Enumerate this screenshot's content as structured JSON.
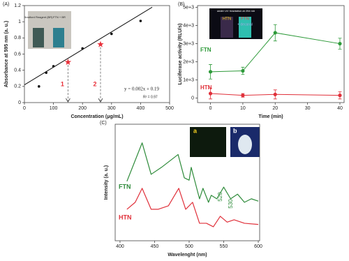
{
  "chart_data": [
    {
      "type": "scatter",
      "panel_label": "(A)",
      "xlabel": "Concentration (μg/mL)",
      "ylabel": "Absorbance at 595 nm (a. u.)",
      "xlim": [
        0,
        500
      ],
      "ylim": [
        0,
        1.2
      ],
      "xticks": [
        0,
        100,
        200,
        300,
        400,
        500
      ],
      "yticks": [
        0,
        0.2,
        0.4,
        0.6,
        0.8,
        1,
        1.2
      ],
      "x": [
        50,
        75,
        100,
        200,
        300,
        400
      ],
      "values": [
        0.2,
        0.37,
        0.45,
        0.67,
        0.85,
        1.01
      ],
      "color": "#111111",
      "fit": {
        "x": [
          0,
          440
        ],
        "y": [
          0.22,
          1.18
        ],
        "equation": "y = 0.002x + 0.19",
        "r2": "R² = 0.97"
      },
      "markers": {
        "x": [
          150,
          262
        ],
        "y": [
          0.5,
          0.72
        ],
        "labels": [
          "1",
          "2"
        ],
        "color": "#e8303a"
      },
      "inset_texts": [
        "Bradford Reagent (BR)",
        "FTN + BR"
      ]
    },
    {
      "type": "line",
      "panel_label": "(B)",
      "xlabel": "Time (min)",
      "ylabel": "Luciferase activity (RLU/s)",
      "xlim": [
        -4,
        41.3
      ],
      "ylim": [
        -250,
        5100
      ],
      "xticks": [
        0,
        10,
        20,
        30,
        40
      ],
      "yticks": [
        0,
        {
          "value": 1000,
          "label": "1e+3"
        },
        {
          "value": 2000,
          "label": "2e+3"
        },
        {
          "value": 3000,
          "label": "3e+3"
        },
        {
          "value": 4000,
          "label": "4e+3"
        },
        {
          "value": 5000,
          "label": "5e+3"
        }
      ],
      "x": [
        0,
        10,
        20,
        40
      ],
      "series": [
        {
          "name": "FTN",
          "color": "#2e9a3a",
          "values": [
            1450,
            1500,
            3600,
            3000
          ],
          "errors": [
            400,
            200,
            450,
            300
          ]
        },
        {
          "name": "HTN",
          "color": "#e0303a",
          "values": [
            250,
            150,
            200,
            150
          ],
          "errors": [
            300,
            100,
            250,
            200
          ]
        }
      ],
      "inset_texts": [
        "under UV irradiation at 254 nm",
        "HTN",
        "FTN",
        "+ decanal"
      ]
    },
    {
      "type": "spectrum",
      "panel_label": "(C)",
      "xlabel": "Wavelenght (nm)",
      "ylabel": "Intensity (a. u.)",
      "xlim": [
        393,
        602
      ],
      "ylim": [
        0,
        100
      ],
      "xticks": [
        400,
        450,
        500,
        550,
        600
      ],
      "series": [
        {
          "name": "FTN",
          "color": "#2e8b3a",
          "x": [
            410,
            432,
            445,
            460,
            484,
            493,
            500,
            503,
            515,
            520,
            528,
            532,
            540,
            550,
            560,
            570,
            580,
            590,
            600
          ],
          "values": [
            51,
            84,
            57,
            63,
            74,
            54,
            52,
            63,
            36,
            45,
            33,
            39,
            36,
            46,
            36,
            40,
            33,
            36,
            34
          ]
        },
        {
          "name": "HTN",
          "color": "#e0303a",
          "x": [
            410,
            422,
            432,
            445,
            455,
            470,
            485,
            495,
            505,
            515,
            525,
            535,
            545,
            555,
            565,
            580,
            600
          ],
          "values": [
            27,
            33,
            45,
            27,
            27,
            30,
            45,
            27,
            33,
            15,
            15,
            12,
            21,
            16,
            18,
            15,
            14
          ]
        }
      ],
      "annotations": [
        "520",
        "530"
      ],
      "inset_texts": [
        "a",
        "b"
      ]
    }
  ]
}
